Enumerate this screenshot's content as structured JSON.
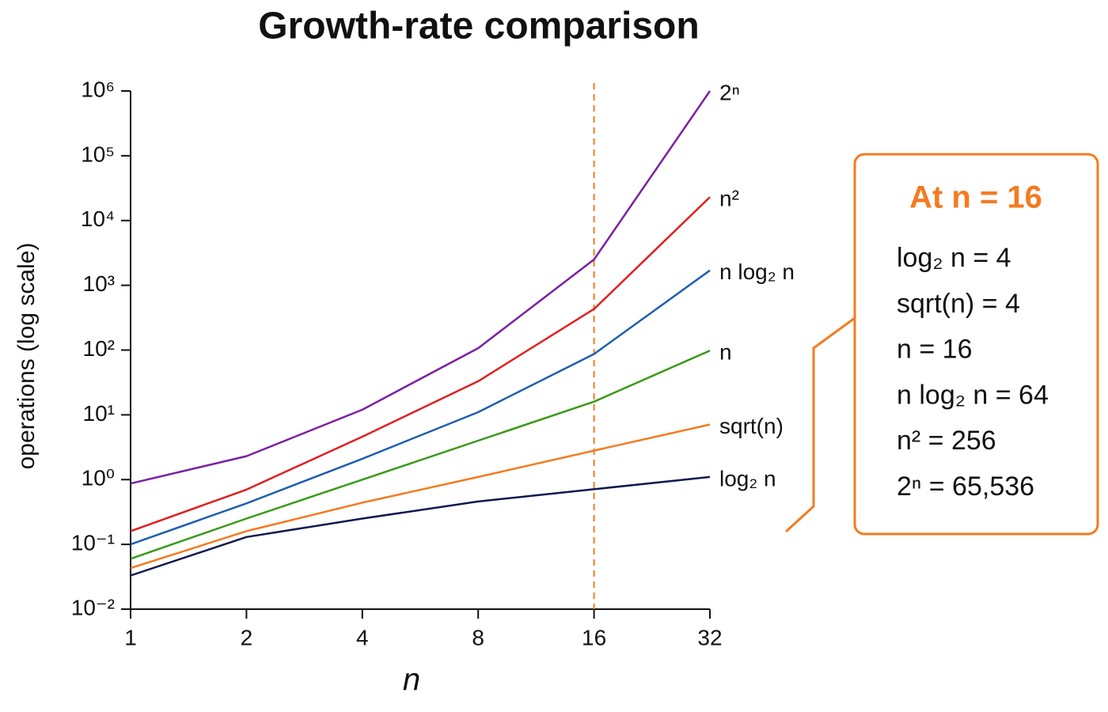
{
  "chart_data": {
    "type": "line",
    "title": "Growth-rate comparison",
    "x_label": "n",
    "y_label": "operations (log scale)",
    "x": [
      1,
      2,
      4,
      8,
      16,
      32
    ],
    "xscale": "log",
    "yscale": "log",
    "xlim": [
      1,
      32
    ],
    "xticks": [
      1,
      2,
      4,
      8,
      16,
      32
    ],
    "ylim": [
      0.01,
      1000000
    ],
    "yticks": [
      {
        "value": 0.01,
        "label": "10⁻²"
      },
      {
        "value": 0.1,
        "label": "10⁻¹"
      },
      {
        "value": 1,
        "label": "10⁰"
      },
      {
        "value": 10,
        "label": "10¹"
      },
      {
        "value": 100,
        "label": "10²"
      },
      {
        "value": 1000,
        "label": "10³"
      },
      {
        "value": 10000,
        "label": "10⁴"
      },
      {
        "value": 100000,
        "label": "10⁵"
      },
      {
        "value": 1000000,
        "label": "10⁶"
      }
    ],
    "series": [
      {
        "name": "2ⁿ",
        "color": "#7b1fa2",
        "values": [
          0.87,
          2.3,
          12,
          107,
          2500,
          1000000
        ]
      },
      {
        "name": "n²",
        "color": "#e02020",
        "values": [
          0.16,
          0.7,
          4.6,
          33,
          430,
          23000
        ]
      },
      {
        "name": "n log₂ n",
        "color": "#1f5fb0",
        "values": [
          0.1,
          0.43,
          2.1,
          11,
          87,
          1700
        ]
      },
      {
        "name": "n",
        "color": "#3a9a1a",
        "values": [
          0.06,
          0.25,
          1.0,
          4,
          16,
          98
        ]
      },
      {
        "name": "sqrt(n)",
        "color": "#f47b20",
        "values": [
          0.043,
          0.16,
          0.44,
          1.1,
          2.8,
          7.1
        ]
      },
      {
        "name": "log₂ n",
        "color": "#101850",
        "values": [
          0.033,
          0.13,
          0.25,
          0.46,
          0.71,
          1.1
        ]
      }
    ],
    "marker_x": 16,
    "marker_color": "#f47b20",
    "annotation": {
      "title": "At n = 16",
      "lines": [
        "log₂ n = 4",
        "sqrt(n) = 4",
        "n = 16",
        "n log₂ n = 64",
        "n² = 256",
        "2ⁿ = 65,536"
      ]
    }
  }
}
